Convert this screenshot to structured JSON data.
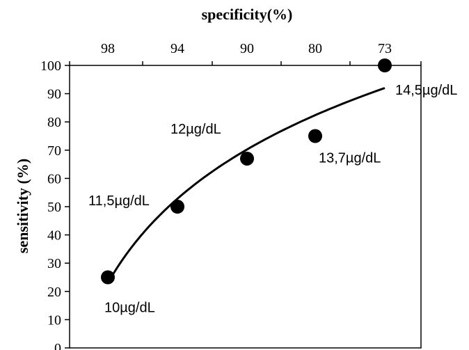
{
  "chart_data": {
    "type": "scatter",
    "title": "specificity(%)",
    "ylabel": "sensitivity (%)",
    "xlabel": "",
    "x_categories": [
      "98",
      "94",
      "90",
      "80",
      "73"
    ],
    "ylim": [
      0,
      100
    ],
    "yticks": [
      0,
      10,
      20,
      30,
      40,
      50,
      60,
      70,
      80,
      90,
      100
    ],
    "grid": false,
    "points": [
      {
        "x": "98",
        "y": 25,
        "label": "10µg/dL"
      },
      {
        "x": "94",
        "y": 50,
        "label": "11,5µg/dL"
      },
      {
        "x": "90",
        "y": 67,
        "label": "12µg/dL"
      },
      {
        "x": "80",
        "y": 75,
        "label": "13,7µg/dL"
      },
      {
        "x": "73",
        "y": 100,
        "label": "14,5µg/dL"
      }
    ],
    "trendline": {
      "type": "logarithmic",
      "start_y": 23,
      "end_y": 92
    }
  }
}
